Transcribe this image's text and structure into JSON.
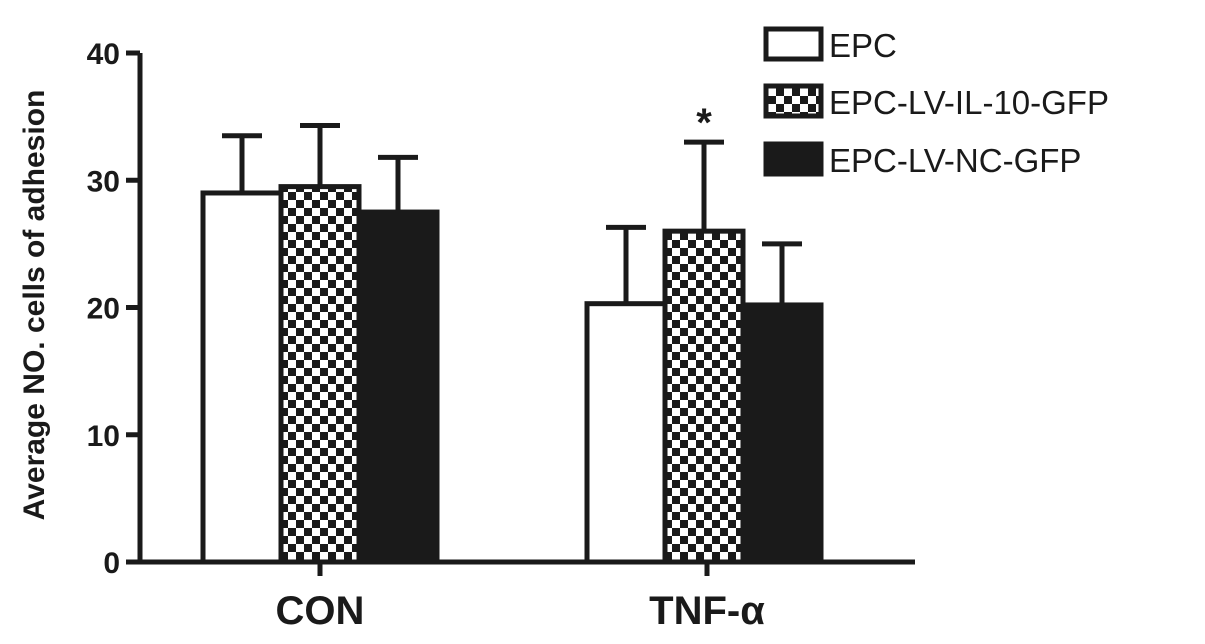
{
  "chart_data": {
    "type": "bar",
    "title": "",
    "xlabel": "",
    "ylabel": "Average NO. cells of adhesion",
    "ylim": [
      0,
      40
    ],
    "yticks": [
      0,
      10,
      20,
      30,
      40
    ],
    "categories": [
      "CON",
      "TNF-α"
    ],
    "series": [
      {
        "name": "EPC",
        "pattern": "white",
        "values": [
          29.0,
          20.3
        ],
        "errors": [
          4.5,
          6.0
        ]
      },
      {
        "name": "EPC-LV-IL-10-GFP",
        "pattern": "checker",
        "values": [
          29.5,
          26.0
        ],
        "errors": [
          4.8,
          7.0
        ]
      },
      {
        "name": "EPC-LV-NC-GFP",
        "pattern": "black",
        "values": [
          27.5,
          20.2
        ],
        "errors": [
          4.3,
          4.8
        ]
      }
    ],
    "annotations": [
      {
        "text": "*",
        "category": "TNF-α",
        "series": "EPC-LV-IL-10-GFP"
      }
    ],
    "legend_position": "top-right",
    "grid": false,
    "colors": {
      "outline": "#1a1a1a",
      "fill_white": "#ffffff",
      "fill_black": "#1a1a1a"
    }
  }
}
